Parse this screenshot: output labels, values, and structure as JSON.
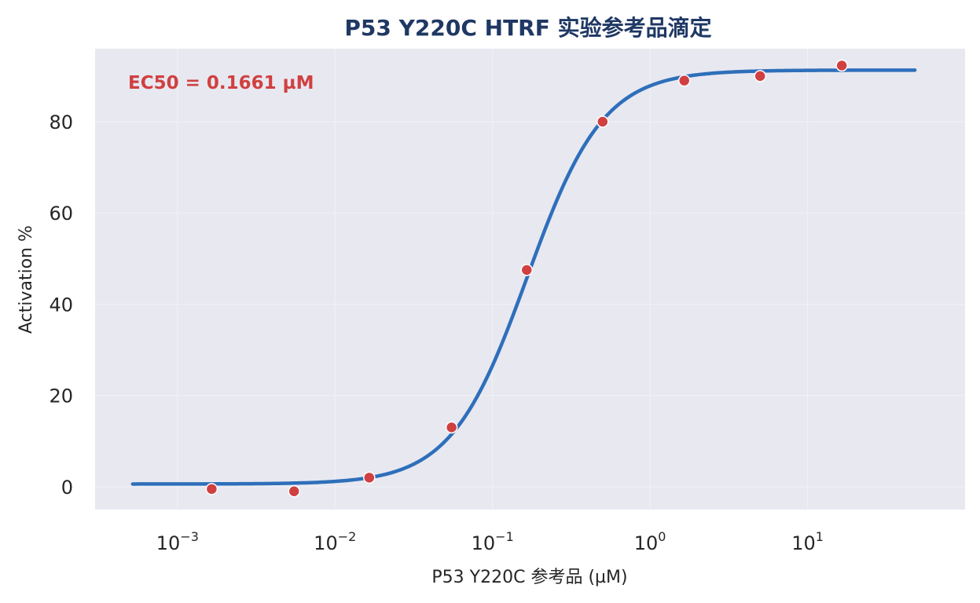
{
  "chart_data": {
    "type": "scatter",
    "title": "P53 Y220C HTRF 实验参考品滴定",
    "xlabel": "P53 Y220C 参考品 (µM)",
    "ylabel": "Activation %",
    "x_scale": "log",
    "xlim": [
      0.0003,
      100
    ],
    "ylim": [
      -5,
      96
    ],
    "x_ticks": [
      {
        "value": 0.001,
        "base": "10",
        "exp": "−3"
      },
      {
        "value": 0.01,
        "base": "10",
        "exp": "−2"
      },
      {
        "value": 0.1,
        "base": "10",
        "exp": "−1"
      },
      {
        "value": 1,
        "base": "10",
        "exp": "0"
      },
      {
        "value": 10,
        "base": "10",
        "exp": "1"
      }
    ],
    "y_ticks": [
      0,
      20,
      40,
      60,
      80
    ],
    "grid": true,
    "annotation": "EC50 = 0.1661 µM",
    "points": {
      "color": "#d04040",
      "x": [
        0.00165,
        0.0055,
        0.0165,
        0.055,
        0.165,
        0.5,
        1.65,
        5.0,
        16.5
      ],
      "y": [
        -0.5,
        -1.0,
        2.0,
        13.0,
        47.5,
        80.0,
        89.0,
        90.0,
        92.3
      ]
    },
    "fit": {
      "color": "#2e6fba",
      "bottom": 0.6,
      "top": 91.3,
      "ec50": 0.1661,
      "hill": 1.8,
      "x_range": [
        0.00052,
        48
      ]
    }
  }
}
